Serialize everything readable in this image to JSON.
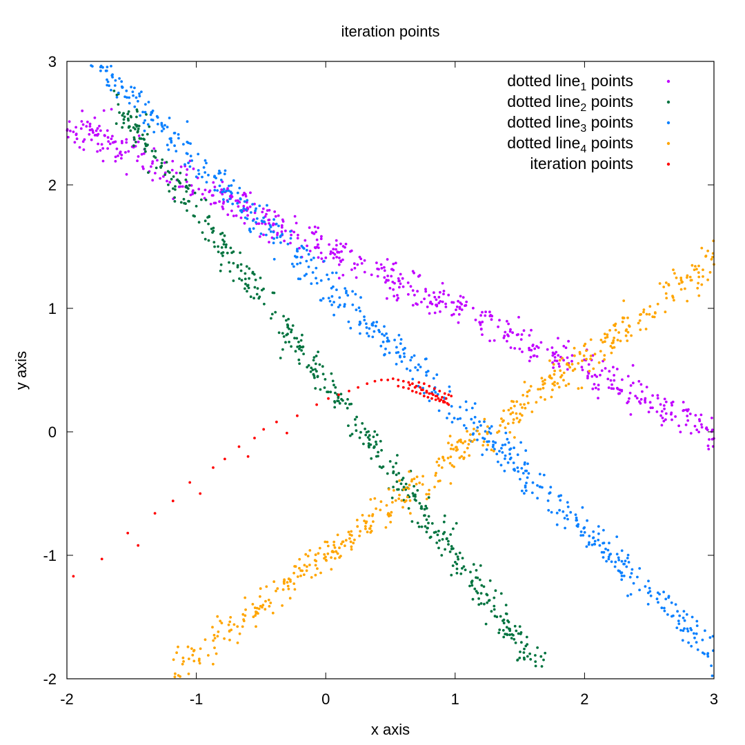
{
  "chart_data": {
    "type": "scatter",
    "title": "iteration points",
    "xlabel": "x axis",
    "ylabel": "y axis",
    "xlim": [
      -2,
      3
    ],
    "ylim": [
      -2,
      3
    ],
    "xticks": [
      "-2",
      "-1",
      "0",
      "1",
      "2",
      "3"
    ],
    "yticks": [
      "-2",
      "-1",
      "0",
      "1",
      "2",
      "3"
    ],
    "grid": false,
    "legend_position": "top-right",
    "series": [
      {
        "name": "dotted line",
        "subscript": "1",
        "name_suffix": " points",
        "color": "#c000ff",
        "kind": "noisy_line",
        "slope": -0.5,
        "intercept": 1.5,
        "x_range": [
          -2,
          3
        ],
        "noise": 0.08,
        "count": 600,
        "seed": 11
      },
      {
        "name": "dotted line",
        "subscript": "2",
        "name_suffix": " points",
        "color": "#00733f",
        "kind": "noisy_line",
        "slope": -1.4,
        "intercept": 0.4,
        "x_range": [
          -1.65,
          1.7
        ],
        "noise": 0.08,
        "count": 500,
        "seed": 23
      },
      {
        "name": "dotted line",
        "subscript": "3",
        "name_suffix": " points",
        "color": "#0a80ff",
        "kind": "noisy_line",
        "slope": -1.0,
        "intercept": 1.2,
        "x_range": [
          -2,
          3
        ],
        "noise": 0.08,
        "count": 600,
        "seed": 37
      },
      {
        "name": "dotted line",
        "subscript": "4",
        "name_suffix": " points",
        "color": "#ffa500",
        "kind": "noisy_line",
        "slope": 0.8,
        "intercept": -1.0,
        "x_range": [
          -1.2,
          3
        ],
        "noise": 0.08,
        "count": 500,
        "seed": 53
      },
      {
        "name": "iteration points",
        "color": "#ff0000",
        "kind": "points",
        "points": [
          [
            -1.95,
            -1.17
          ],
          [
            -1.73,
            -1.03
          ],
          [
            -1.53,
            -0.82
          ],
          [
            -1.45,
            -0.92
          ],
          [
            -1.32,
            -0.66
          ],
          [
            -1.18,
            -0.56
          ],
          [
            -1.05,
            -0.41
          ],
          [
            -0.97,
            -0.5
          ],
          [
            -0.87,
            -0.29
          ],
          [
            -0.78,
            -0.22
          ],
          [
            -0.67,
            -0.12
          ],
          [
            -0.6,
            -0.2
          ],
          [
            -0.55,
            -0.05
          ],
          [
            -0.48,
            0.02
          ],
          [
            -0.38,
            0.08
          ],
          [
            -0.3,
            -0.01
          ],
          [
            -0.22,
            0.13
          ],
          [
            -0.07,
            0.22
          ],
          [
            0.02,
            0.27
          ],
          [
            0.1,
            0.3
          ],
          [
            0.18,
            0.33
          ],
          [
            0.25,
            0.36
          ],
          [
            0.32,
            0.39
          ],
          [
            0.38,
            0.41
          ],
          [
            0.43,
            0.42
          ],
          [
            0.48,
            0.42
          ],
          [
            0.52,
            0.43
          ],
          [
            0.56,
            0.42
          ],
          [
            0.6,
            0.41
          ],
          [
            0.64,
            0.4
          ],
          [
            0.67,
            0.39
          ],
          [
            0.7,
            0.37
          ],
          [
            0.73,
            0.36
          ],
          [
            0.75,
            0.34
          ],
          [
            0.78,
            0.33
          ],
          [
            0.8,
            0.31
          ],
          [
            0.83,
            0.3
          ],
          [
            0.85,
            0.29
          ],
          [
            0.87,
            0.27
          ],
          [
            0.89,
            0.26
          ],
          [
            0.91,
            0.25
          ],
          [
            0.92,
            0.24
          ],
          [
            0.94,
            0.23
          ],
          [
            0.95,
            0.22
          ],
          [
            0.56,
            0.37
          ],
          [
            0.6,
            0.36
          ],
          [
            0.64,
            0.35
          ],
          [
            0.67,
            0.33
          ],
          [
            0.7,
            0.32
          ],
          [
            0.73,
            0.31
          ],
          [
            0.76,
            0.29
          ],
          [
            0.79,
            0.28
          ],
          [
            0.82,
            0.27
          ],
          [
            0.85,
            0.26
          ],
          [
            0.88,
            0.25
          ],
          [
            0.91,
            0.24
          ],
          [
            0.72,
            0.4
          ],
          [
            0.76,
            0.39
          ],
          [
            0.8,
            0.37
          ],
          [
            0.84,
            0.35
          ],
          [
            0.88,
            0.33
          ],
          [
            0.92,
            0.31
          ],
          [
            0.95,
            0.3
          ],
          [
            0.97,
            0.29
          ],
          [
            0.65,
            0.38
          ],
          [
            0.69,
            0.36
          ],
          [
            0.74,
            0.34
          ],
          [
            0.78,
            0.32
          ],
          [
            0.82,
            0.31
          ],
          [
            0.86,
            0.29
          ],
          [
            0.9,
            0.28
          ],
          [
            0.93,
            0.27
          ]
        ]
      }
    ]
  }
}
